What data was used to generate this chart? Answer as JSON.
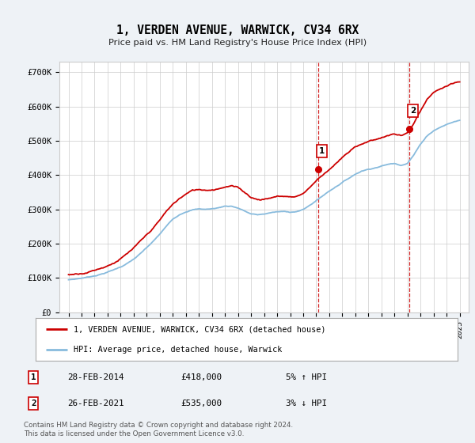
{
  "title": "1, VERDEN AVENUE, WARWICK, CV34 6RX",
  "subtitle": "Price paid vs. HM Land Registry's House Price Index (HPI)",
  "ylabel_ticks": [
    "£0",
    "£100K",
    "£200K",
    "£300K",
    "£400K",
    "£500K",
    "£600K",
    "£700K"
  ],
  "ytick_values": [
    0,
    100000,
    200000,
    300000,
    400000,
    500000,
    600000,
    700000
  ],
  "ylim": [
    0,
    730000
  ],
  "line1_color": "#cc0000",
  "line2_color": "#88bbdd",
  "point1_year": 2014.17,
  "point1_value": 418000,
  "point2_year": 2021.17,
  "point2_value": 535000,
  "legend1": "1, VERDEN AVENUE, WARWICK, CV34 6RX (detached house)",
  "legend2": "HPI: Average price, detached house, Warwick",
  "table_row1": [
    "1",
    "28-FEB-2014",
    "£418,000",
    "5% ↑ HPI"
  ],
  "table_row2": [
    "2",
    "26-FEB-2021",
    "£535,000",
    "3% ↓ HPI"
  ],
  "footer": "Contains HM Land Registry data © Crown copyright and database right 2024.\nThis data is licensed under the Open Government Licence v3.0.",
  "bg_color": "#eef2f6",
  "plot_bg_color": "#ffffff",
  "grid_color": "#cccccc",
  "vline_color": "#cc0000",
  "box_color": "#cc0000",
  "hpi_years": [
    1995,
    1995.5,
    1996,
    1996.5,
    1997,
    1997.5,
    1998,
    1998.5,
    1999,
    1999.5,
    2000,
    2000.5,
    2001,
    2001.5,
    2002,
    2002.5,
    2003,
    2003.5,
    2004,
    2004.5,
    2005,
    2005.5,
    2006,
    2006.5,
    2007,
    2007.5,
    2008,
    2008.5,
    2009,
    2009.5,
    2010,
    2010.5,
    2011,
    2011.5,
    2012,
    2012.5,
    2013,
    2013.5,
    2014,
    2014.5,
    2015,
    2015.5,
    2016,
    2016.5,
    2017,
    2017.5,
    2018,
    2018.5,
    2019,
    2019.5,
    2020,
    2020.5,
    2021,
    2021.5,
    2022,
    2022.5,
    2023,
    2023.5,
    2024,
    2024.5,
    2025
  ],
  "hpi_vals": [
    95000,
    97000,
    100000,
    103000,
    107000,
    112000,
    118000,
    125000,
    133000,
    143000,
    155000,
    170000,
    187000,
    205000,
    225000,
    248000,
    268000,
    282000,
    292000,
    298000,
    300000,
    299000,
    300000,
    303000,
    308000,
    308000,
    303000,
    294000,
    285000,
    282000,
    284000,
    288000,
    290000,
    290000,
    289000,
    291000,
    296000,
    308000,
    322000,
    336000,
    350000,
    363000,
    376000,
    388000,
    400000,
    410000,
    415000,
    420000,
    425000,
    430000,
    432000,
    428000,
    435000,
    460000,
    490000,
    515000,
    530000,
    540000,
    548000,
    555000,
    560000
  ],
  "price_years": [
    1995,
    1995.5,
    1996,
    1996.5,
    1997,
    1997.5,
    1998,
    1998.5,
    1999,
    1999.5,
    2000,
    2000.5,
    2001,
    2001.5,
    2002,
    2002.5,
    2003,
    2003.5,
    2004,
    2004.5,
    2005,
    2005.5,
    2006,
    2006.5,
    2007,
    2007.5,
    2008,
    2008.5,
    2009,
    2009.5,
    2010,
    2010.5,
    2011,
    2011.5,
    2012,
    2012.5,
    2013,
    2013.5,
    2014,
    2014.5,
    2015,
    2015.5,
    2016,
    2016.5,
    2017,
    2017.5,
    2018,
    2018.5,
    2019,
    2019.5,
    2020,
    2020.5,
    2021,
    2021.5,
    2022,
    2022.5,
    2023,
    2023.5,
    2024,
    2024.5,
    2025
  ],
  "price_vals": [
    110000,
    113000,
    117000,
    122000,
    128000,
    135000,
    143000,
    153000,
    165000,
    178000,
    193000,
    210000,
    228000,
    248000,
    270000,
    295000,
    315000,
    332000,
    345000,
    355000,
    358000,
    358000,
    360000,
    365000,
    372000,
    375000,
    368000,
    355000,
    342000,
    336000,
    338000,
    342000,
    346000,
    347000,
    345000,
    348000,
    356000,
    375000,
    395000,
    412000,
    430000,
    447000,
    463000,
    478000,
    492000,
    503000,
    510000,
    516000,
    522000,
    528000,
    532000,
    526000,
    535000,
    562000,
    596000,
    628000,
    645000,
    656000,
    663000,
    668000,
    672000
  ]
}
